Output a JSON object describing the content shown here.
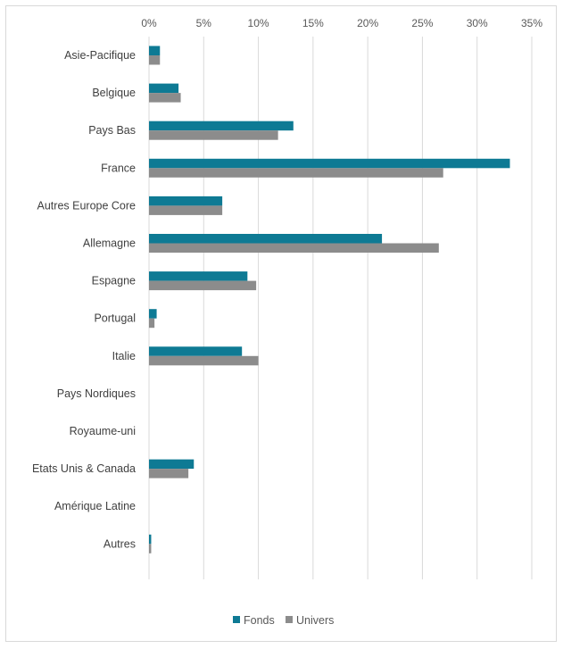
{
  "chart_data": {
    "type": "bar",
    "orientation": "horizontal",
    "categories": [
      "Asie-Pacifique",
      "Belgique",
      "Pays Bas",
      "France",
      "Autres Europe Core",
      "Allemagne",
      "Espagne",
      "Portugal",
      "Italie",
      "Pays Nordiques",
      "Royaume-uni",
      "Etats Unis & Canada",
      "Amérique Latine",
      "Autres"
    ],
    "series": [
      {
        "name": "Fonds",
        "color": "#0e7a94",
        "values": [
          1.0,
          2.7,
          13.2,
          33.0,
          6.7,
          21.3,
          9.0,
          0.7,
          8.5,
          0,
          0,
          4.1,
          0,
          0.2
        ]
      },
      {
        "name": "Univers",
        "color": "#8c8c8c",
        "values": [
          1.0,
          2.9,
          11.8,
          26.9,
          6.7,
          26.5,
          9.8,
          0.5,
          10.0,
          0,
          0,
          3.6,
          0,
          0.2
        ]
      }
    ],
    "x_ticks": [
      "0%",
      "5%",
      "10%",
      "15%",
      "20%",
      "25%",
      "30%",
      "35%"
    ],
    "xlim": [
      0,
      35
    ],
    "x_axis_position": "top",
    "grid": true,
    "legend_position": "bottom"
  }
}
